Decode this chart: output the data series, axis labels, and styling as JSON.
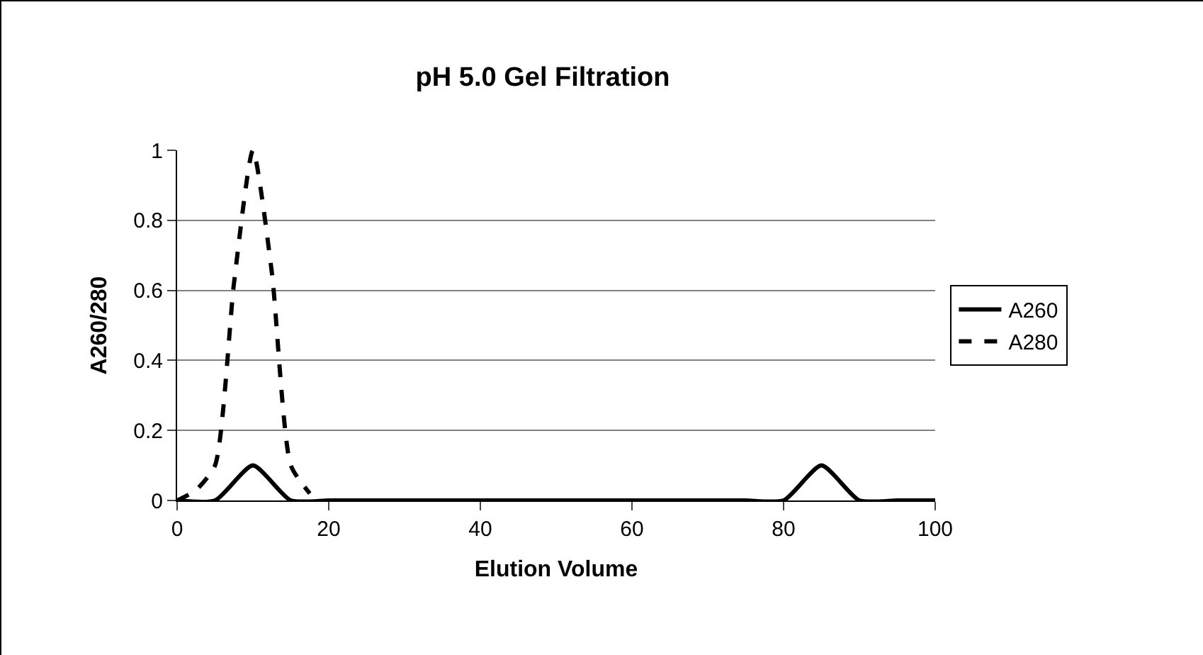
{
  "chart_data": {
    "type": "line",
    "title": "pH 5.0 Gel Filtration",
    "xlabel": "Elution Volume",
    "ylabel": "A260/280",
    "xlim": [
      0,
      100
    ],
    "xticks": [
      0,
      20,
      40,
      60,
      80,
      100
    ],
    "ylim": [
      0,
      1
    ],
    "yticks": [
      0,
      0.2,
      0.4,
      0.6,
      0.8,
      1
    ],
    "grid": "y",
    "legend": "right",
    "marker": "none",
    "series": [
      {
        "name": "A260",
        "color": "#000000",
        "line_style": "solid",
        "x": [
          0,
          5,
          10,
          15,
          20,
          25,
          30,
          35,
          40,
          45,
          50,
          55,
          60,
          65,
          70,
          75,
          80,
          85,
          90,
          95,
          100
        ],
        "values": [
          0,
          0,
          0.1,
          0,
          0,
          0,
          0,
          0,
          0,
          0,
          0,
          0,
          0,
          0,
          0,
          0,
          0,
          0.1,
          0,
          0,
          0
        ]
      },
      {
        "name": "A280",
        "color": "#000000",
        "line_style": "dashed",
        "x": [
          0,
          2.5,
          5,
          7.5,
          10,
          12.5,
          15,
          17.5
        ],
        "values": [
          0,
          0.03,
          0.1,
          0.62,
          1,
          0.65,
          0.1,
          0.02
        ]
      }
    ]
  }
}
